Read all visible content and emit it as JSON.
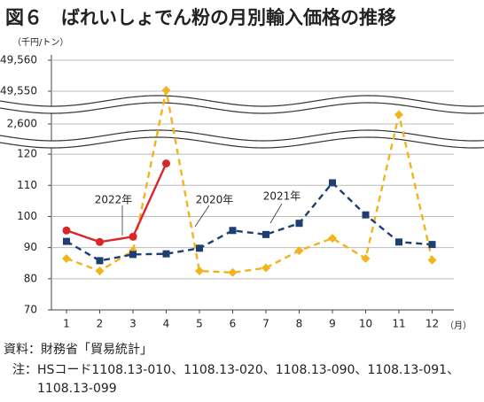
{
  "chart_data": {
    "type": "line",
    "title": "図６　ばれいしょでん粉の月別輸入価格の推移",
    "y_label": "（千円/トン）",
    "x_label": "（月）",
    "categories": [
      "1",
      "2",
      "3",
      "4",
      "5",
      "6",
      "7",
      "8",
      "9",
      "10",
      "11",
      "12"
    ],
    "ylim": [
      70,
      49560
    ],
    "y_segments": [
      [
        70,
        124
      ],
      [
        2596,
        2604
      ],
      [
        49548,
        49560
      ]
    ],
    "yticks": [
      70,
      80,
      90,
      100,
      110,
      120,
      {
        "value": 2600,
        "label": "2,600"
      },
      {
        "value": 49550,
        "label": "49,550"
      },
      {
        "value": 49560,
        "label": "49,560"
      }
    ],
    "grid": true,
    "series": [
      {
        "name": "2022年",
        "color": "#d9262b",
        "marker": "circle",
        "dashed": false,
        "values": [
          95.5,
          91.8,
          93.5,
          117,
          null,
          null,
          null,
          null,
          null,
          null,
          null,
          null
        ]
      },
      {
        "name": "2021年",
        "color": "#1f3f73",
        "marker": "square",
        "dashed": true,
        "values": [
          92,
          85.8,
          87.8,
          88,
          89.8,
          95.5,
          94.2,
          97.8,
          110.8,
          100.5,
          91.8,
          91
        ]
      },
      {
        "name": "2020年",
        "color": "#f2b41e",
        "marker": "diamond",
        "dashed": true,
        "values": [
          86.5,
          82.5,
          89,
          49550.3,
          82.5,
          82,
          83.5,
          89,
          93,
          86.5,
          2603,
          86
        ]
      }
    ],
    "source": "資料：財務省「貿易統計」",
    "note_label": "注：",
    "note": "HSコード1108.13-010、1108.13-020、1108.13-090、1108.13-091、1108.13-099"
  }
}
